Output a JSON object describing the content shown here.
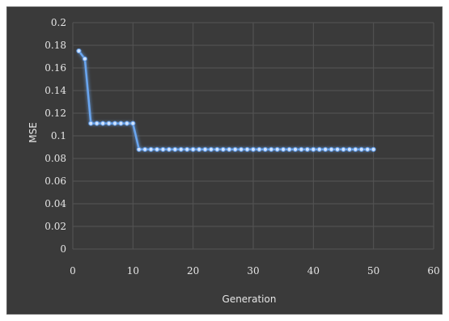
{
  "chart_data": {
    "type": "line",
    "xlabel": "Generation",
    "ylabel": "MSE",
    "xlim": [
      0,
      60
    ],
    "ylim": [
      0,
      0.2
    ],
    "x_ticks": [
      "0",
      "10",
      "20",
      "30",
      "40",
      "50",
      "60"
    ],
    "y_ticks": [
      "0",
      "0.02",
      "0.04",
      "0.06",
      "0.08",
      "0.1",
      "0.12",
      "0.14",
      "0.16",
      "0.18",
      "0.2"
    ],
    "grid": true,
    "legend": "none",
    "series_color": "#6aa6f0",
    "marker_color": "#cfe3ff",
    "background_color": "#3a3a3a",
    "series": [
      {
        "x": [
          1,
          2,
          3,
          4,
          5,
          6,
          7,
          8,
          9,
          10,
          11,
          12,
          13,
          14,
          15,
          16,
          17,
          18,
          19,
          20,
          21,
          22,
          23,
          24,
          25,
          26,
          27,
          28,
          29,
          30,
          31,
          32,
          33,
          34,
          35,
          36,
          37,
          38,
          39,
          40,
          41,
          42,
          43,
          44,
          45,
          46,
          47,
          48,
          49,
          50
        ],
        "values": [
          0.175,
          0.168,
          0.111,
          0.111,
          0.111,
          0.111,
          0.111,
          0.111,
          0.111,
          0.111,
          0.088,
          0.088,
          0.088,
          0.088,
          0.088,
          0.088,
          0.088,
          0.088,
          0.088,
          0.088,
          0.088,
          0.088,
          0.088,
          0.088,
          0.088,
          0.088,
          0.088,
          0.088,
          0.088,
          0.088,
          0.088,
          0.088,
          0.088,
          0.088,
          0.088,
          0.088,
          0.088,
          0.088,
          0.088,
          0.088,
          0.088,
          0.088,
          0.088,
          0.088,
          0.088,
          0.088,
          0.088,
          0.088,
          0.088,
          0.088
        ]
      }
    ]
  }
}
